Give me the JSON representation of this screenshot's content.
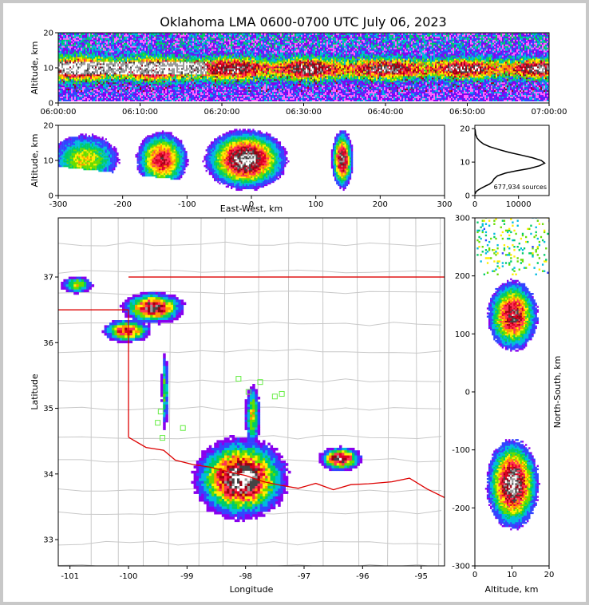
{
  "title": "Oklahoma LMA 0600-0700 UTC July 06, 2023",
  "chart_data": [
    {
      "type": "heatmap",
      "panel": "altitude-time",
      "ylabel": "Altitude, km",
      "ylim": [
        0,
        20
      ],
      "y_ticks": [
        "0",
        "10",
        "20"
      ],
      "x_ticks": [
        "06:00:00",
        "06:10:00",
        "06:20:00",
        "06:30:00",
        "06:40:00",
        "06:50:00",
        "07:00:00"
      ],
      "xlim": [
        "06:00:00",
        "07:00:00"
      ],
      "colormap": "source density"
    },
    {
      "type": "heatmap",
      "panel": "altitude-eastwest",
      "xlabel": "East-West, km",
      "ylabel": "Altitude, km",
      "xlim": [
        -300,
        300
      ],
      "ylim": [
        0,
        20
      ],
      "x_ticks": [
        "-300",
        "-200",
        "-100",
        "0",
        "100",
        "200",
        "300"
      ],
      "y_ticks": [
        "0",
        "10",
        "20"
      ]
    },
    {
      "type": "line",
      "panel": "altitude-histogram",
      "annotation": "677,934 sources",
      "xlim": [
        0,
        17000
      ],
      "ylim": [
        0,
        21
      ],
      "x_ticks": [
        "0",
        "10000"
      ],
      "y_ticks": [
        "0",
        "10",
        "20"
      ],
      "x": [
        50,
        300,
        800,
        1600,
        2500,
        3300,
        4000,
        4400,
        5200,
        7000,
        9500,
        12500,
        14800,
        16000,
        15200,
        13200,
        10600,
        7800,
        5400,
        3400,
        2000,
        1100,
        500,
        180,
        60
      ],
      "y": [
        0.5,
        1.2,
        1.7,
        2.3,
        2.9,
        3.4,
        4.1,
        5.0,
        5.9,
        6.7,
        7.4,
        8.1,
        8.9,
        9.7,
        10.5,
        11.3,
        12.1,
        12.9,
        13.8,
        14.6,
        15.4,
        16.3,
        17.2,
        18.3,
        19.8
      ]
    },
    {
      "type": "heatmap",
      "panel": "plan-view",
      "xlabel": "Longitude",
      "ylabel": "Latitude",
      "xlim": [
        -101.2,
        -94.6
      ],
      "ylim": [
        32.6,
        37.9
      ],
      "x_ticks": [
        "-101",
        "-100",
        "-99",
        "-98",
        "-97",
        "-96",
        "-95"
      ],
      "y_ticks": [
        "33",
        "34",
        "35",
        "36",
        "37"
      ],
      "sensor_stations_color": "#66ee44",
      "state_border_color": "#dd0000"
    },
    {
      "type": "heatmap",
      "panel": "northsouth-altitude",
      "xlabel": "Altitude, km",
      "ylabel": "North-South, km",
      "xlim": [
        0,
        20
      ],
      "ylim": [
        -300,
        300
      ],
      "x_ticks": [
        "0",
        "10",
        "20"
      ],
      "y_ticks": [
        "-300",
        "-200",
        "-100",
        "0",
        "100",
        "200",
        "300"
      ]
    }
  ]
}
